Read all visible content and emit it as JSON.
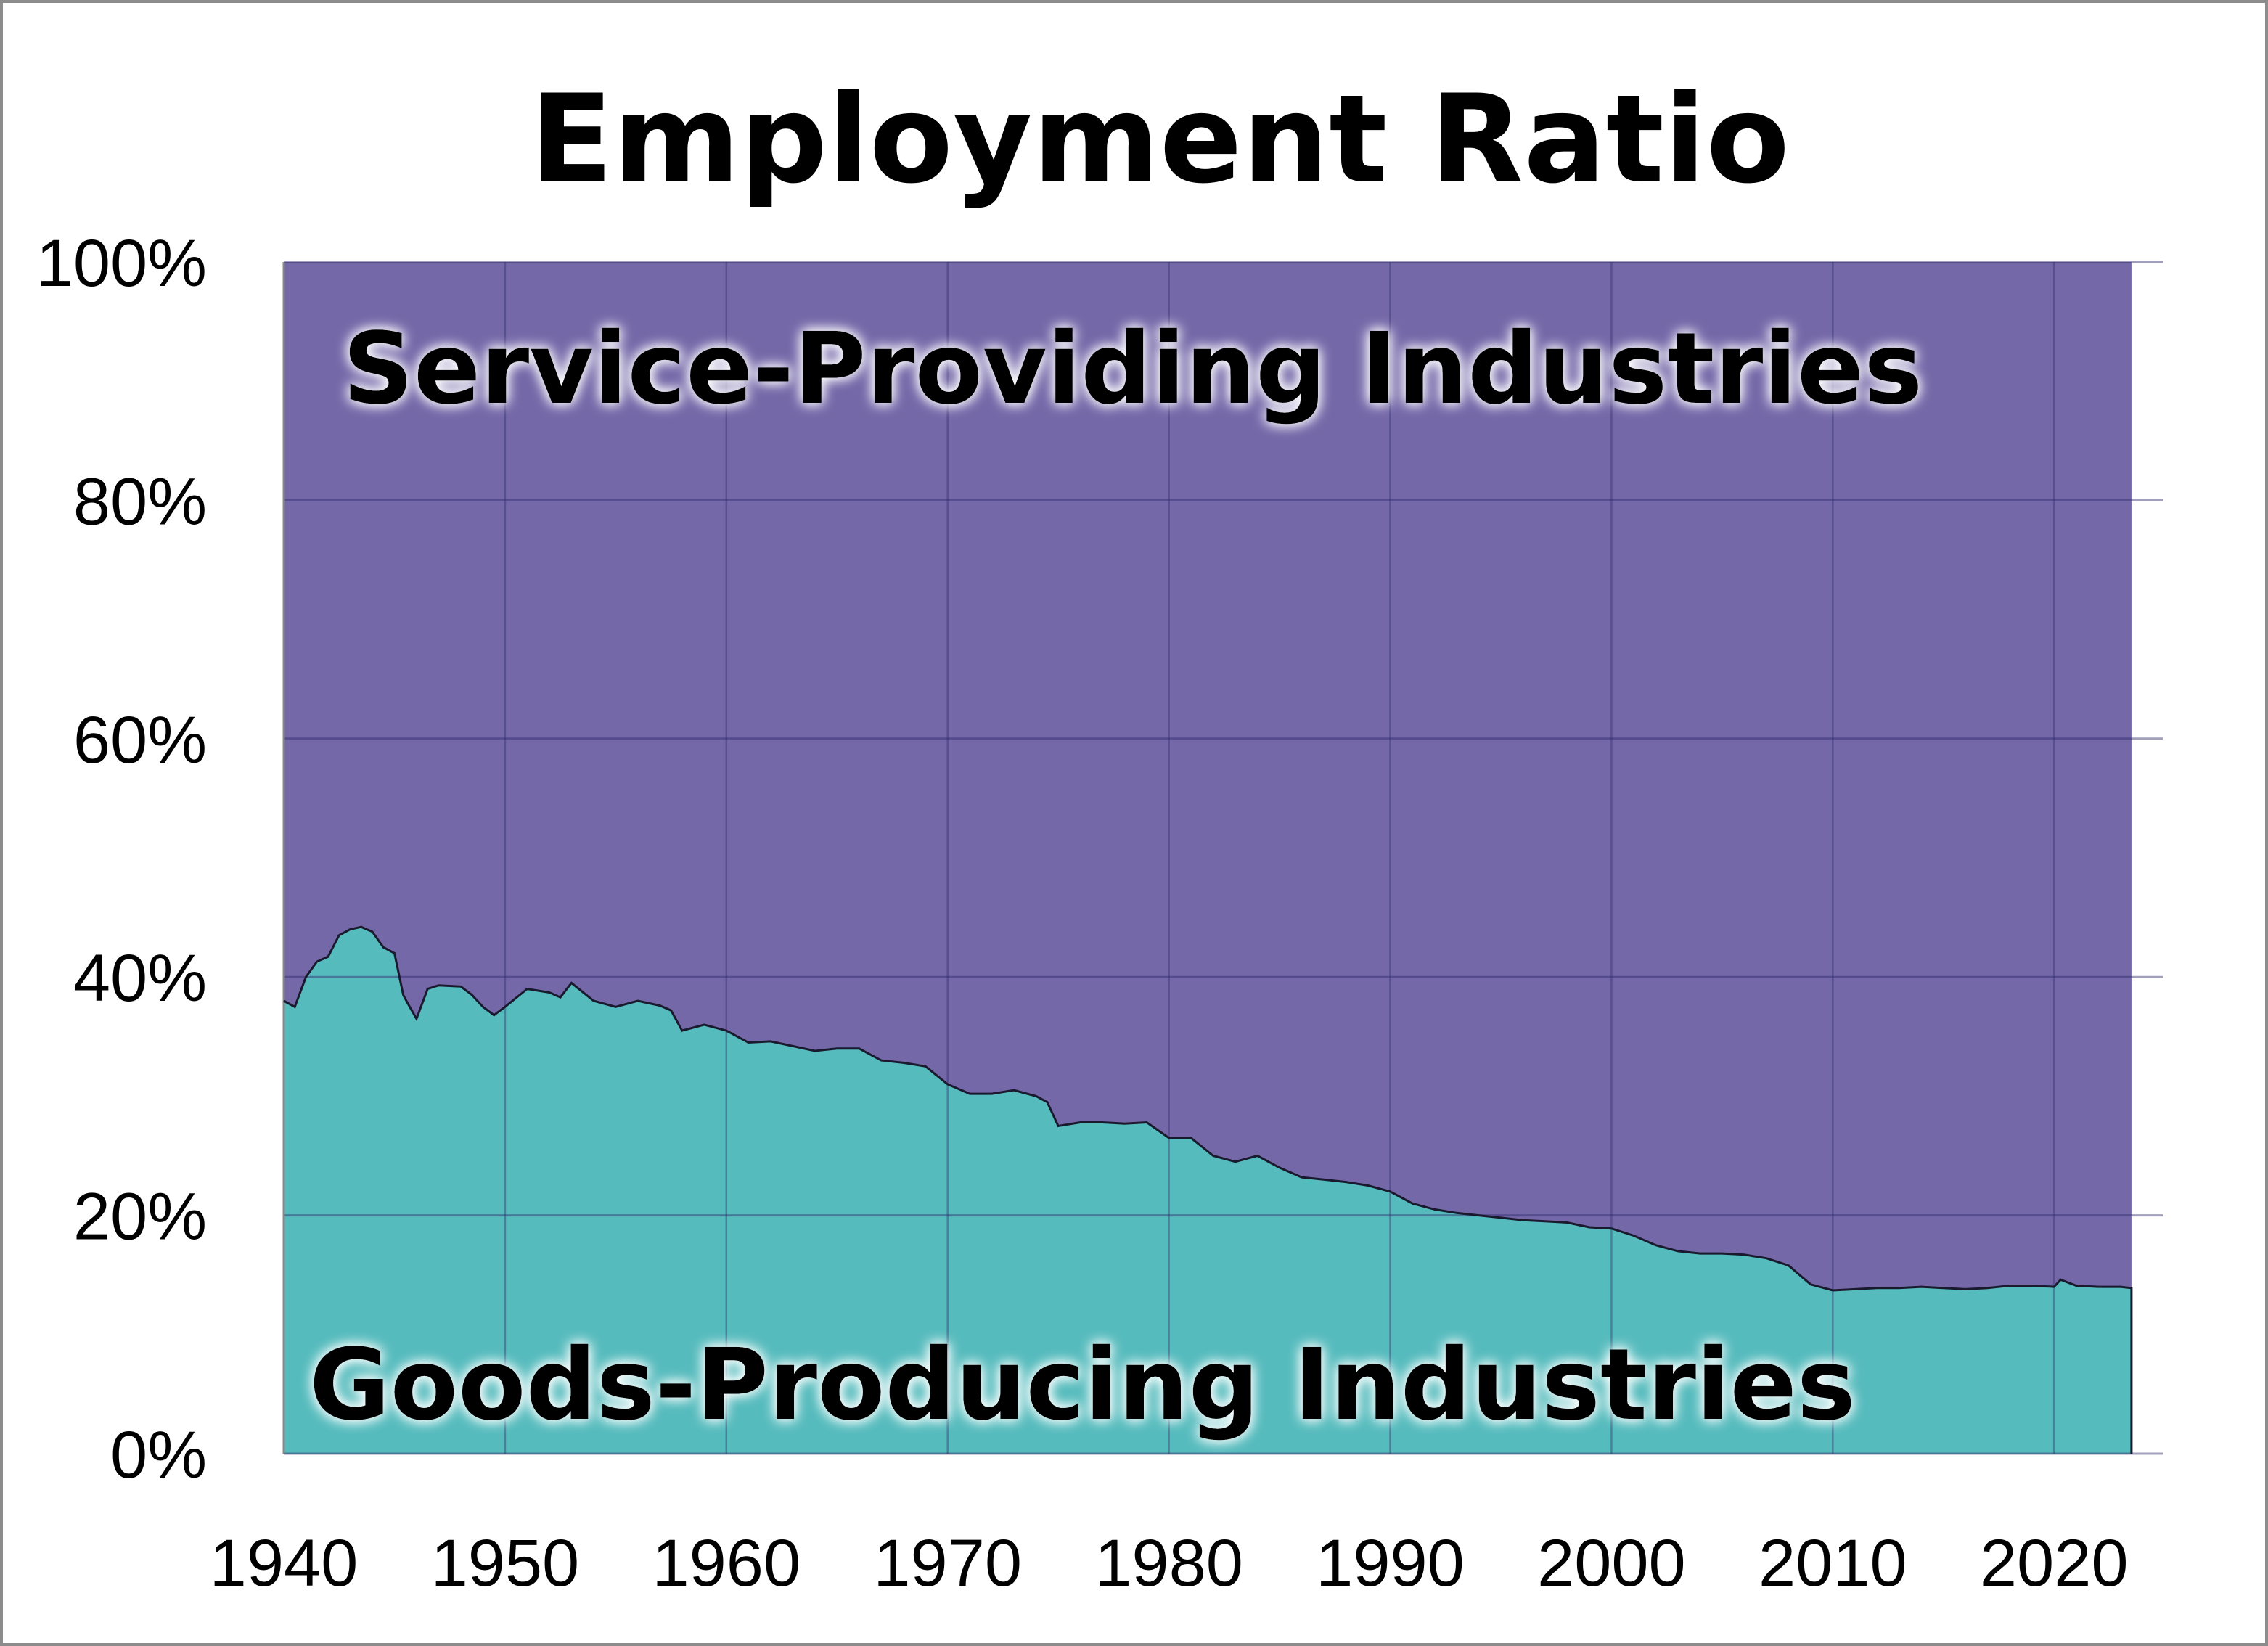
{
  "chart_data": {
    "type": "area",
    "stacked": true,
    "percent_stacked": true,
    "title": "Employment Ratio",
    "xlabel": "",
    "ylabel": "",
    "xlim": [
      1940,
      2025
    ],
    "ylim": [
      0,
      100
    ],
    "grid": true,
    "x_ticks": [
      "1940",
      "1950",
      "1960",
      "1970",
      "1980",
      "1990",
      "2000",
      "2010",
      "2020"
    ],
    "y_ticks": [
      "0%",
      "20%",
      "40%",
      "60%",
      "80%",
      "100%"
    ],
    "annotations": {
      "service": "Service-Providing Industries",
      "goods": "Goods-Producing Industries"
    },
    "colors": {
      "service": "#7468a8",
      "goods": "#56bbbd"
    },
    "x": [
      1940,
      1940.5,
      1941,
      1941.5,
      1942,
      1942.5,
      1943,
      1943.5,
      1944,
      1944.5,
      1945,
      1945.4,
      1945.6,
      1946,
      1946.5,
      1947,
      1948,
      1948.5,
      1949,
      1949.5,
      1950,
      1951,
      1952,
      1952.5,
      1953,
      1954,
      1955,
      1956,
      1957,
      1957.5,
      1958,
      1959,
      1960,
      1961,
      1962,
      1963,
      1964,
      1965,
      1966,
      1967,
      1968,
      1969,
      1970,
      1971,
      1972,
      1973,
      1974,
      1974.5,
      1975,
      1976,
      1977,
      1978,
      1979,
      1980,
      1981,
      1982,
      1983,
      1984,
      1985,
      1986,
      1987,
      1988,
      1989,
      1990,
      1991,
      1992,
      1993,
      1994,
      1995,
      1996,
      1997,
      1998,
      1999,
      2000,
      2001,
      2002,
      2003,
      2004,
      2005,
      2006,
      2007,
      2008,
      2009,
      2010,
      2011,
      2012,
      2013,
      2014,
      2015,
      2016,
      2017,
      2018,
      2019,
      2020,
      2020.3,
      2021,
      2022,
      2023,
      2023.5
    ],
    "series": [
      {
        "name": "Goods-Producing Industries",
        "values": [
          38,
          37.5,
          40,
          41.3,
          41.7,
          43.5,
          44,
          44.2,
          43.8,
          42.5,
          42,
          38.5,
          37.8,
          36.5,
          39,
          39.3,
          39.2,
          38.5,
          37.5,
          36.8,
          37.5,
          39,
          38.7,
          38.3,
          39.5,
          38,
          37.5,
          38,
          37.6,
          37.2,
          35.5,
          36,
          35.5,
          34.5,
          34.6,
          34.2,
          33.8,
          34,
          34,
          33,
          32.8,
          32.5,
          31,
          30.2,
          30.2,
          30.5,
          30,
          29.5,
          27.5,
          27.8,
          27.8,
          27.7,
          27.8,
          26.5,
          26.5,
          25,
          24.5,
          25,
          24,
          23.2,
          23,
          22.8,
          22.5,
          22,
          21,
          20.5,
          20.2,
          20,
          19.8,
          19.6,
          19.5,
          19.4,
          19,
          18.9,
          18.3,
          17.5,
          17,
          16.8,
          16.8,
          16.7,
          16.4,
          15.8,
          14.2,
          13.7,
          13.8,
          13.9,
          13.9,
          14,
          13.9,
          13.8,
          13.9,
          14.1,
          14.1,
          14.0,
          14.6,
          14.1,
          14,
          14,
          13.9
        ]
      },
      {
        "name": "Service-Providing Industries",
        "values": "100 minus goods-producing share"
      }
    ]
  }
}
